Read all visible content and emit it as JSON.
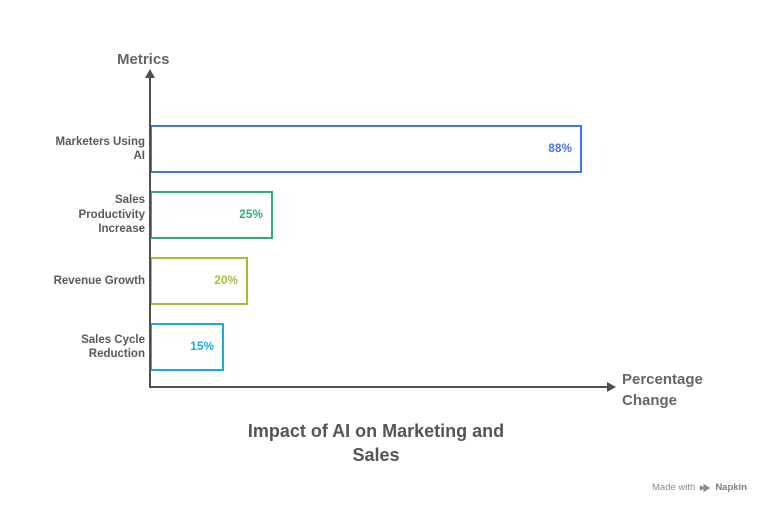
{
  "chart_data": {
    "type": "bar",
    "orientation": "horizontal",
    "title": "Impact of AI on Marketing and Sales",
    "title_display": "Impact of AI on Marketing and\nSales",
    "ylabel": "Metrics",
    "xlabel": "Percentage Change",
    "categories": [
      "Marketers Using AI",
      "Sales Productivity Increase",
      "Revenue Growth",
      "Sales Cycle Reduction"
    ],
    "category_display": [
      "Marketers Using\nAI",
      "Sales\nProductivity\nIncrease",
      "Revenue Growth",
      "Sales Cycle\nReduction"
    ],
    "values": [
      88,
      25,
      20,
      15
    ],
    "value_labels": [
      "88%",
      "25%",
      "20%",
      "15%"
    ],
    "bar_colors": [
      "#4472E8",
      "#2FAD73",
      "#A2BE37",
      "#1FA8DC"
    ],
    "xlim": [
      0,
      94
    ],
    "grid": false,
    "legend": false,
    "axis_color": "#4F4F4F",
    "value_label_position": "inside-right"
  },
  "watermark": {
    "prefix": "Made with",
    "brand": "Napkin",
    "icon": "napkin-logo-icon"
  }
}
